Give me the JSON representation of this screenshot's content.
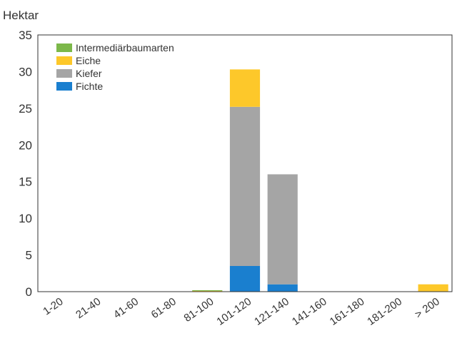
{
  "chart_data": {
    "type": "bar",
    "stacked": true,
    "ylabel": "Hektar",
    "ylim": [
      0,
      35
    ],
    "yticks": [
      0,
      5,
      10,
      15,
      20,
      25,
      30,
      35
    ],
    "categories": [
      "1-20",
      "21-40",
      "41-60",
      "61-80",
      "81-100",
      "101-120",
      "121-140",
      "141-160",
      "161-180",
      "181-200",
      "> 200"
    ],
    "series": [
      {
        "name": "Fichte",
        "color": "#1a7fcf",
        "values": [
          0,
          0,
          0,
          0,
          0,
          3.5,
          1.0,
          0,
          0,
          0,
          0
        ]
      },
      {
        "name": "Kiefer",
        "color": "#a5a5a5",
        "values": [
          0,
          0,
          0,
          0,
          0,
          21.7,
          15.0,
          0,
          0,
          0,
          0
        ]
      },
      {
        "name": "Eiche",
        "color": "#fdc82a",
        "values": [
          0,
          0,
          0,
          0,
          0.1,
          5.1,
          0,
          0,
          0,
          0,
          1.0
        ]
      },
      {
        "name": "Intermediärbaumarten",
        "color": "#7cb84a",
        "values": [
          0,
          0,
          0,
          0,
          0.1,
          0,
          0,
          0,
          0,
          0,
          0
        ]
      }
    ],
    "legend_order": [
      "Intermediärbaumarten",
      "Eiche",
      "Kiefer",
      "Fichte"
    ],
    "legend_position": "top-left",
    "grid": false
  }
}
